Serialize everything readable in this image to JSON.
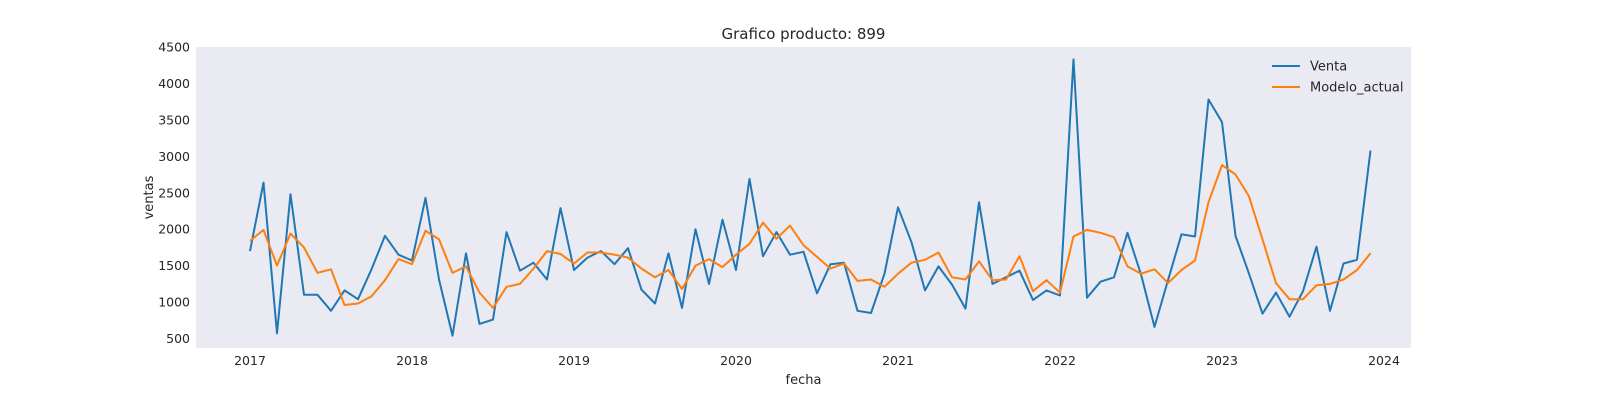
{
  "chart_data": {
    "type": "line",
    "title": "Grafico producto: 899",
    "xlabel": "fecha",
    "ylabel": "ventas",
    "x_start": "2017-01",
    "x_end": "2023-12",
    "x_frequency": "monthly",
    "xlim": [
      "2016-09",
      "2024-03"
    ],
    "xticks": [
      "2017",
      "2018",
      "2019",
      "2020",
      "2021",
      "2022",
      "2023",
      "2024"
    ],
    "ylim": [
      370,
      4500
    ],
    "yticks": [
      500,
      1000,
      1500,
      2000,
      2500,
      3000,
      3500,
      4000,
      4500
    ],
    "grid": false,
    "legend_position": "top-right",
    "background_color": "#eaeaf2",
    "series": [
      {
        "name": "Venta",
        "color": "#1f77b4",
        "values": [
          1700,
          2640,
          570,
          2480,
          1100,
          1100,
          880,
          1160,
          1040,
          1450,
          1910,
          1650,
          1570,
          2430,
          1310,
          540,
          1670,
          700,
          760,
          1960,
          1430,
          1540,
          1310,
          2290,
          1440,
          1610,
          1700,
          1520,
          1740,
          1170,
          980,
          1670,
          920,
          2000,
          1250,
          2130,
          1440,
          2690,
          1630,
          1960,
          1650,
          1690,
          1120,
          1520,
          1540,
          880,
          850,
          1390,
          2300,
          1820,
          1160,
          1490,
          1240,
          910,
          2370,
          1250,
          1340,
          1430,
          1030,
          1160,
          1090,
          4330,
          1060,
          1280,
          1340,
          1950,
          1380,
          660,
          1300,
          1930,
          1900,
          3780,
          3470,
          1910,
          1390,
          840,
          1130,
          800,
          1150,
          1760,
          880,
          1530,
          1580,
          3080
        ]
      },
      {
        "name": "Modelo_actual",
        "color": "#ff7f0e",
        "values": [
          1840,
          1990,
          1500,
          1940,
          1750,
          1400,
          1450,
          960,
          980,
          1080,
          1300,
          1590,
          1520,
          1980,
          1860,
          1400,
          1490,
          1130,
          920,
          1210,
          1250,
          1460,
          1700,
          1660,
          1530,
          1680,
          1680,
          1650,
          1610,
          1460,
          1340,
          1440,
          1180,
          1500,
          1590,
          1480,
          1650,
          1800,
          2090,
          1870,
          2050,
          1780,
          1620,
          1460,
          1530,
          1290,
          1310,
          1210,
          1390,
          1540,
          1580,
          1680,
          1340,
          1310,
          1560,
          1300,
          1310,
          1630,
          1150,
          1300,
          1130,
          1900,
          1990,
          1950,
          1890,
          1490,
          1390,
          1450,
          1260,
          1440,
          1570,
          2370,
          2880,
          2750,
          2450,
          1860,
          1260,
          1040,
          1040,
          1230,
          1250,
          1310,
          1440,
          1670
        ]
      }
    ]
  }
}
